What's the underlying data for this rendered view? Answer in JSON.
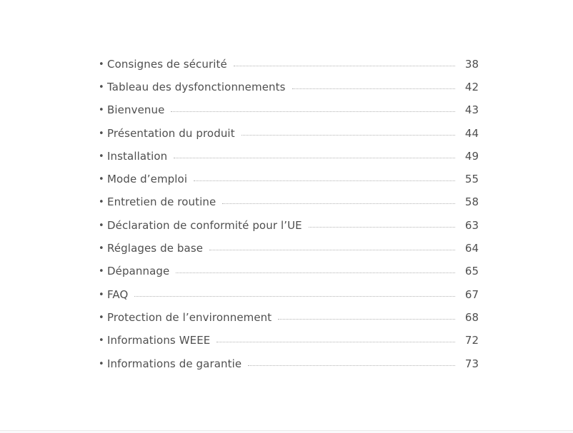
{
  "page": {
    "background": "#ffffff",
    "text_color": "#4f4f4f",
    "leader_color": "#b3b3b3",
    "bullet_glyph": "•"
  },
  "toc": {
    "items": [
      {
        "title": "Consignes de sécurité",
        "page": "38"
      },
      {
        "title": "Tableau des dysfonctionnements",
        "page": "42"
      },
      {
        "title": "Bienvenue",
        "page": "43"
      },
      {
        "title": "Présentation du produit",
        "page": "44"
      },
      {
        "title": "Installation",
        "page": "49"
      },
      {
        "title": "Mode d’emploi",
        "page": "55"
      },
      {
        "title": "Entretien de routine",
        "page": "58"
      },
      {
        "title": "Déclaration de conformité pour l’UE",
        "page": "63"
      },
      {
        "title": "Réglages de base",
        "page": "64"
      },
      {
        "title": "Dépannage",
        "page": "65"
      },
      {
        "title": "FAQ",
        "page": "67"
      },
      {
        "title": "Protection de l’environnement",
        "page": "68"
      },
      {
        "title": "Informations WEEE",
        "page": "72"
      },
      {
        "title": "Informations de garantie",
        "page": "73"
      }
    ]
  }
}
